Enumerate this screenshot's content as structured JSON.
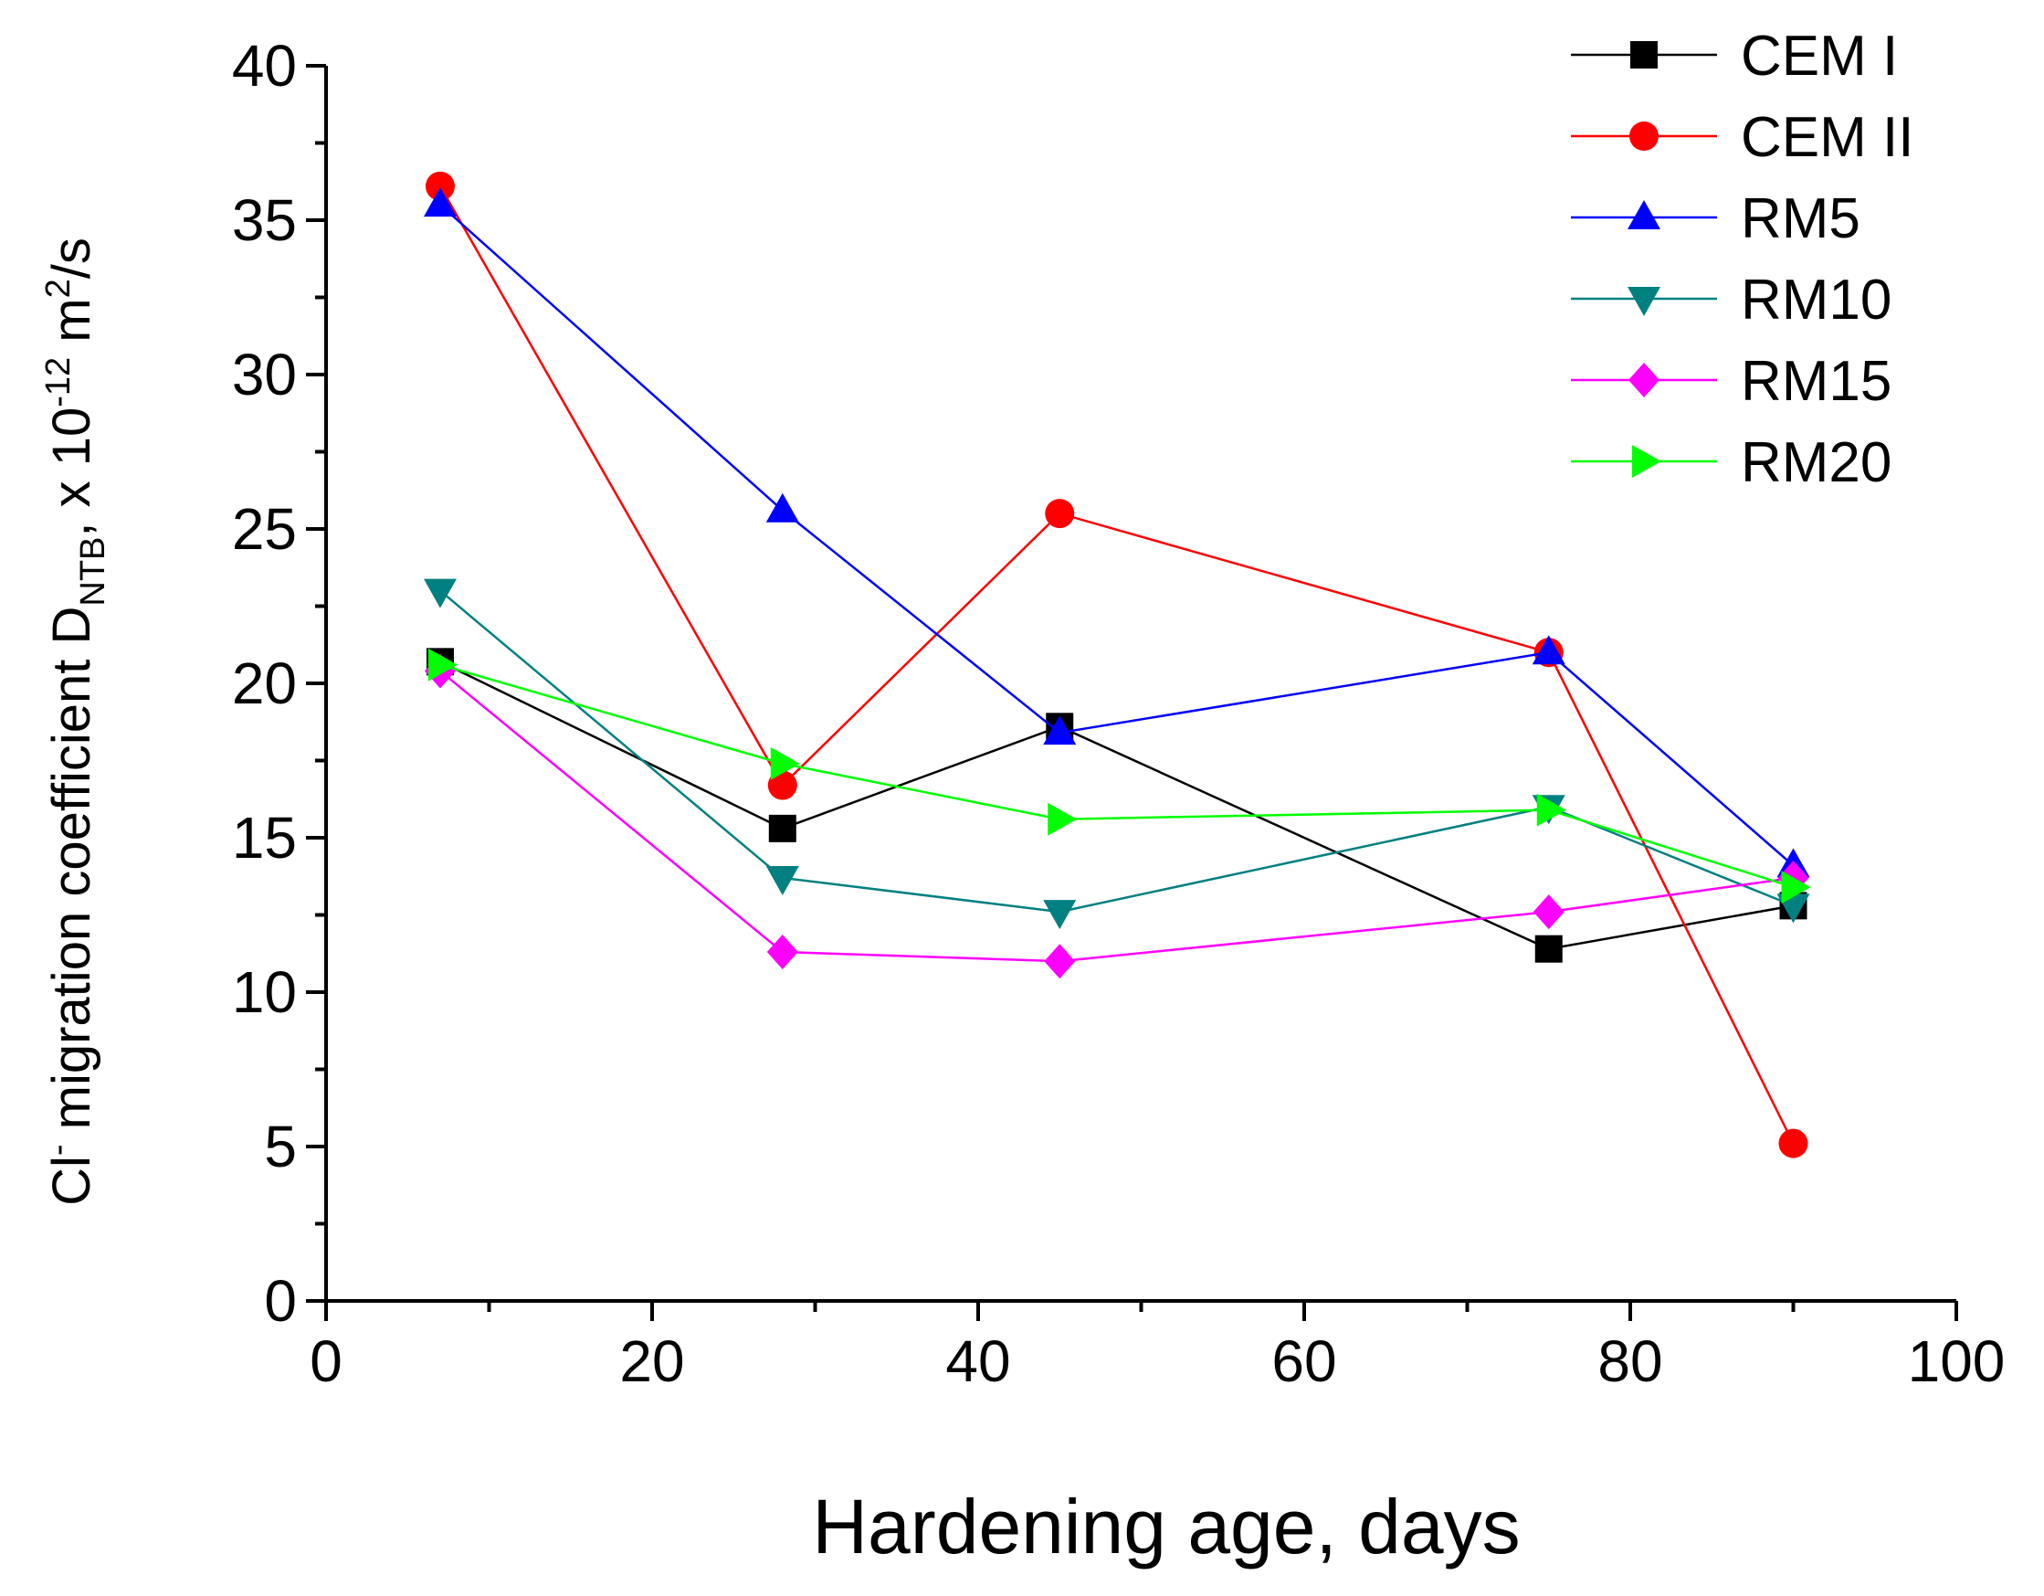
{
  "chart_data": {
    "type": "line",
    "title": "",
    "xlabel": "Hardening age, days",
    "ylabel": {
      "prefix": "Cl",
      "prefix_sup": "-",
      "main": " migration coefficient D",
      "sub": "NTB",
      "mid": ", x 10",
      "exp": "-12",
      "unit": " m",
      "unit_sup": "2",
      "tail": "/s"
    },
    "xlim": [
      0,
      100
    ],
    "ylim": [
      0,
      40
    ],
    "xticks": [
      0,
      20,
      40,
      60,
      80,
      100
    ],
    "yticks": [
      0,
      5,
      10,
      15,
      20,
      25,
      30,
      35,
      40
    ],
    "grid": false,
    "legend_position": "top-right",
    "x": [
      7,
      28,
      45,
      75,
      90
    ],
    "series": [
      {
        "name": "CEM I",
        "color": "#000000",
        "marker": "square",
        "values": [
          20.7,
          15.3,
          18.6,
          11.4,
          12.8
        ]
      },
      {
        "name": "CEM II",
        "color": "#ff0000",
        "marker": "circle",
        "values": [
          36.1,
          16.7,
          25.5,
          21.0,
          5.1
        ]
      },
      {
        "name": "RM5",
        "color": "#0000ff",
        "marker": "triangle-up",
        "values": [
          35.5,
          25.6,
          18.4,
          21.0,
          14.1
        ]
      },
      {
        "name": "RM10",
        "color": "#008080",
        "marker": "triangle-down",
        "values": [
          23.0,
          13.7,
          12.6,
          16.0,
          12.8
        ]
      },
      {
        "name": "RM15",
        "color": "#ff00ff",
        "marker": "diamond",
        "values": [
          20.4,
          11.3,
          11.0,
          12.6,
          13.7
        ]
      },
      {
        "name": "RM20",
        "color": "#00ff00",
        "marker": "triangle-right",
        "values": [
          20.6,
          17.4,
          15.6,
          15.9,
          13.4
        ]
      }
    ]
  }
}
